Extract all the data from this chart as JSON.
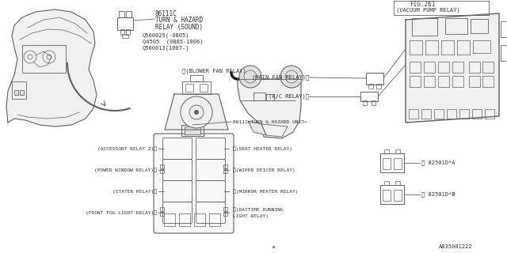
{
  "bg_color": "#ffffff",
  "line_color": "#606060",
  "text_color": "#303030",
  "part_number": "A835001222",
  "top_labels": {
    "part_id": "86111C",
    "line1": "TURN & HAZARD",
    "line2": "RELAY (SOUND)",
    "sub1": "Q500025(-0805)",
    "sub2": "Q4505  (0805-1006)",
    "sub3": "Q500013(1007-)"
  },
  "fig_label": "FIG.261",
  "vacuum_label": "(VACUUM PUMP RELAY)",
  "main_fan_label": "(MAIN FAN RELAY)",
  "ac_relay_label": "(A/C RELAY)",
  "blower_label": "(BLOWER FAN RELAY)",
  "turn_hazard_unit": "86111(TURN & HAZARD UNIT)",
  "left_relays": [
    "(ACCESSORY RELAY 2)",
    "(POWER WINDOW RELAY)",
    "(STATER RELAY)",
    "(FRONT FOG LIGHT RELAY)"
  ],
  "right_relays": [
    "(SEAT HEATER RELAY)",
    "(WIPER DEICER RELAY)",
    "(MIRROR HEATER RELAY)",
    "(DAYTIME RUNNING\nLIGHT RELAY)"
  ],
  "relay_a_label": "82501D*A",
  "relay_b_label": "82501D*B"
}
